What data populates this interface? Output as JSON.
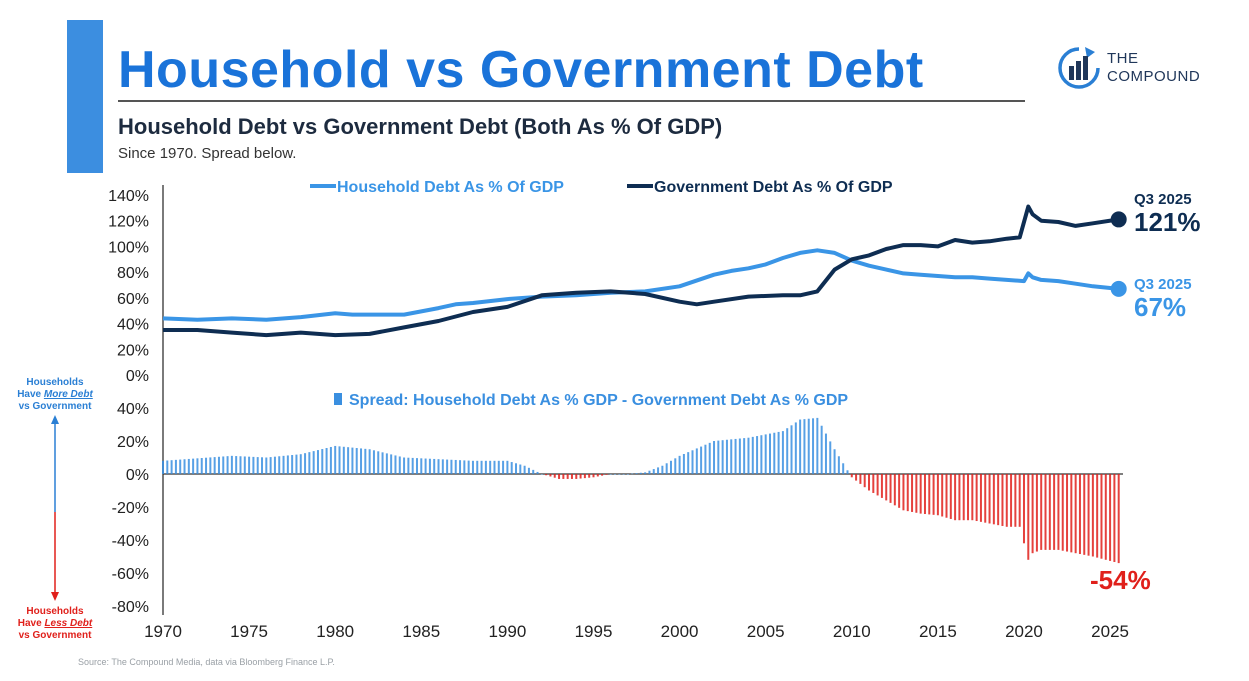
{
  "header": {
    "title": "Household vs Government Debt",
    "subtitle": "Household Debt vs Government Debt (Both As % Of GDP)",
    "note": "Since 1970. Spread below.",
    "source": "Source: The Compound Media, data via Bloomberg Finance L.P."
  },
  "logo": {
    "line1": "THE",
    "line2": "COMPOUND",
    "icon": "bar-chart-arrow-icon"
  },
  "side_labels": {
    "top": [
      "Households",
      "Have ",
      "More Debt",
      "vs Government"
    ],
    "bottom": [
      "Households",
      "Have ",
      "Less Debt",
      "vs Government"
    ]
  },
  "colors": {
    "household": "#3a95e6",
    "government": "#0e2d52",
    "spread_pos": "#3a8fe0",
    "spread_neg": "#e0201b",
    "title": "#1a73d9"
  },
  "chart_data": [
    {
      "type": "line",
      "title": "",
      "xlabel": "",
      "ylabel": "",
      "xlim": [
        1970,
        2025.75
      ],
      "ylim": [
        0,
        140
      ],
      "y_ticks": [
        0,
        20,
        40,
        60,
        80,
        100,
        120,
        140
      ],
      "y_tick_labels": [
        "0%",
        "20%",
        "40%",
        "60%",
        "80%",
        "100%",
        "120%",
        "140%"
      ],
      "legend": "top-center",
      "series": [
        {
          "name": "Household Debt As % Of GDP",
          "color": "#3a95e6",
          "x": [
            1970,
            1972,
            1974,
            1976,
            1978,
            1980,
            1981,
            1982,
            1984,
            1986,
            1987,
            1988,
            1990,
            1992,
            1994,
            1996,
            1998,
            2000,
            2002,
            2003,
            2004,
            2005,
            2006,
            2007,
            2008,
            2009,
            2010,
            2011,
            2012,
            2013,
            2014,
            2015,
            2016,
            2017,
            2018,
            2019,
            2020,
            2020.25,
            2020.5,
            2021,
            2022,
            2023,
            2024,
            2025.5
          ],
          "y": [
            44,
            43,
            44,
            43,
            45,
            48,
            47,
            47,
            47,
            52,
            55,
            56,
            59,
            61,
            62,
            64,
            65,
            69,
            78,
            81,
            83,
            86,
            91,
            95,
            97,
            95,
            89,
            85,
            82,
            79,
            78,
            77,
            76,
            76,
            75,
            74,
            73,
            79,
            76,
            74,
            73,
            71,
            69,
            67
          ],
          "end_label": "Q3 2025",
          "end_value": "67%"
        },
        {
          "name": "Government Debt As % Of GDP",
          "color": "#0e2d52",
          "x": [
            1970,
            1972,
            1974,
            1976,
            1978,
            1980,
            1982,
            1984,
            1986,
            1988,
            1990,
            1992,
            1994,
            1996,
            1998,
            2000,
            2001,
            2002,
            2004,
            2006,
            2007,
            2008,
            2009,
            2010,
            2011,
            2012,
            2013,
            2014,
            2015,
            2016,
            2017,
            2018,
            2019,
            2019.75,
            2020.25,
            2020.5,
            2021,
            2022,
            2023,
            2024,
            2025.5
          ],
          "y": [
            35,
            35,
            33,
            31,
            33,
            31,
            32,
            37,
            42,
            49,
            53,
            62,
            64,
            65,
            63,
            57,
            55,
            57,
            61,
            62,
            62,
            65,
            82,
            90,
            93,
            98,
            101,
            101,
            100,
            105,
            103,
            104,
            106,
            107,
            131,
            125,
            120,
            119,
            116,
            118,
            121
          ],
          "end_label": "Q3 2025",
          "end_value": "121%"
        }
      ]
    },
    {
      "type": "bar",
      "title": "Spread: Household Debt As % GDP - Government Debt As % GDP",
      "xlim": [
        1970,
        2025.75
      ],
      "ylim": [
        -80,
        40
      ],
      "y_ticks": [
        -80,
        -60,
        -40,
        -20,
        0,
        20,
        40
      ],
      "y_tick_labels": [
        "-80%",
        "-60%",
        "-40%",
        "-20%",
        "0%",
        "20%",
        "40%"
      ],
      "x_ticks": [
        1970,
        1975,
        1980,
        1985,
        1990,
        1995,
        2000,
        2005,
        2010,
        2015,
        2020,
        2025
      ],
      "end_value": "-54%",
      "spread_x": [
        1970,
        1974,
        1976,
        1978,
        1980,
        1982,
        1984,
        1986,
        1988,
        1990,
        1991,
        1992,
        1993,
        1994,
        1995,
        1996,
        1997,
        1998,
        1999,
        2000,
        2002,
        2004,
        2006,
        2007,
        2008,
        2009,
        2010,
        2011,
        2012,
        2013,
        2014,
        2015,
        2016,
        2017,
        2018,
        2019,
        2019.75,
        2020.25,
        2020.5,
        2021,
        2022,
        2023,
        2024,
        2025.5
      ],
      "spread_y": [
        8,
        11,
        10,
        12,
        17,
        15,
        10,
        9,
        8,
        8,
        5,
        0,
        -3,
        -3,
        -2,
        0,
        0,
        1,
        5,
        11,
        20,
        22,
        26,
        33,
        34,
        15,
        -2,
        -10,
        -16,
        -22,
        -24,
        -25,
        -28,
        -28,
        -30,
        -32,
        -32,
        -52,
        -48,
        -46,
        -46,
        -48,
        -50,
        -54
      ]
    }
  ]
}
